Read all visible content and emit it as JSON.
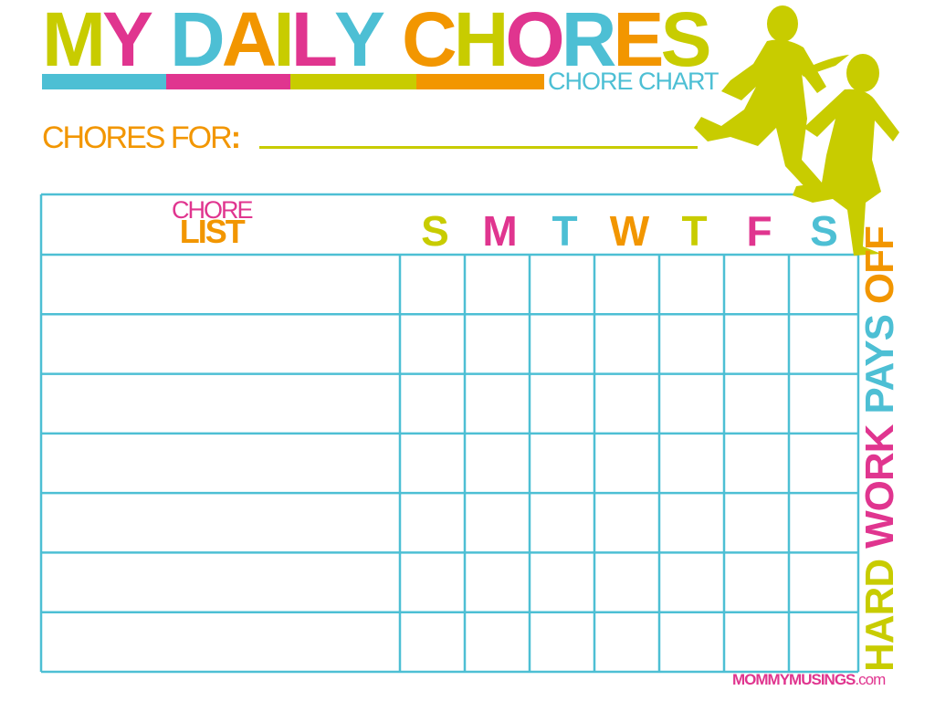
{
  "colors": {
    "lime": "#c8cc00",
    "pink": "#e0358f",
    "cyan": "#4dbfd4",
    "orange": "#f29600"
  },
  "title": {
    "text": "MY DAILY CHORES",
    "letters": [
      {
        "ch": "M",
        "color": "#c8cc00"
      },
      {
        "ch": "Y",
        "color": "#e0358f"
      },
      {
        "ch": " ",
        "color": "#fff"
      },
      {
        "ch": "D",
        "color": "#4dbfd4"
      },
      {
        "ch": "A",
        "color": "#f29600"
      },
      {
        "ch": "I",
        "color": "#c8cc00"
      },
      {
        "ch": "L",
        "color": "#e0358f"
      },
      {
        "ch": "Y",
        "color": "#4dbfd4"
      },
      {
        "ch": " ",
        "color": "#fff"
      },
      {
        "ch": "C",
        "color": "#f29600"
      },
      {
        "ch": "H",
        "color": "#c8cc00"
      },
      {
        "ch": "O",
        "color": "#e0358f"
      },
      {
        "ch": "R",
        "color": "#4dbfd4"
      },
      {
        "ch": "E",
        "color": "#f29600"
      },
      {
        "ch": "S",
        "color": "#c8cc00"
      }
    ]
  },
  "subtitle": "CHORE CHART",
  "chores_for": {
    "label": "CHORES FOR",
    "colon": ":"
  },
  "table": {
    "header_line1": "CHORE",
    "header_line2": "LIST",
    "days": [
      {
        "label": "S",
        "color": "#c8cc00"
      },
      {
        "label": "M",
        "color": "#e0358f"
      },
      {
        "label": "T",
        "color": "#4dbfd4"
      },
      {
        "label": "W",
        "color": "#f29600"
      },
      {
        "label": "T",
        "color": "#c8cc00"
      },
      {
        "label": "F",
        "color": "#e0358f"
      },
      {
        "label": "S",
        "color": "#4dbfd4"
      }
    ],
    "row_count": 7
  },
  "slogan": [
    {
      "word": "HARD",
      "color": "#c8cc00"
    },
    {
      "word": "WORK",
      "color": "#e0358f"
    },
    {
      "word": "PAYS",
      "color": "#4dbfd4"
    },
    {
      "word": "OFF",
      "color": "#f29600"
    }
  ],
  "site": {
    "brand": "MOMMYMUSINGS",
    "tld": ".com"
  }
}
